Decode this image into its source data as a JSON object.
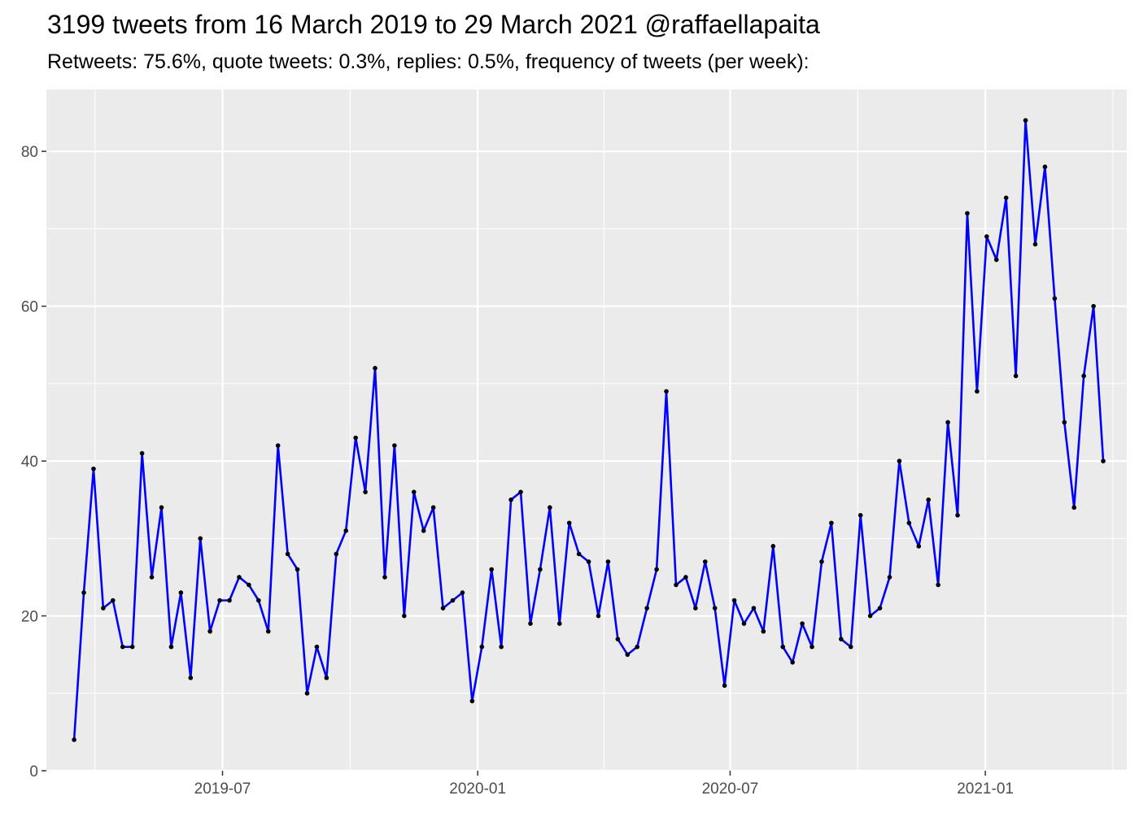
{
  "title": "3199 tweets from 16 March 2019 to 29 March 2021 @raffaellapaita",
  "subtitle": "Retweets: 75.6%, quote tweets: 0.3%, replies: 0.5%, frequency of tweets (per week):",
  "chart_data": {
    "type": "line",
    "title": "3199 tweets from 16 March 2019 to 29 March 2021 @raffaellapaita",
    "subtitle": "Retweets: 75.6%, quote tweets: 0.3%, replies: 0.5%, frequency of tweets (per week):",
    "xlabel": "",
    "ylabel": "",
    "x_axis": "date",
    "xlim": [
      "2019-02-24",
      "2021-04-13"
    ],
    "ylim": [
      0,
      88
    ],
    "y_ticks": [
      0,
      20,
      40,
      60,
      80
    ],
    "x_ticks": [
      {
        "value": "2019-07-01",
        "label": "2019-07"
      },
      {
        "value": "2020-01-01",
        "label": "2020-01"
      },
      {
        "value": "2020-07-01",
        "label": "2020-07"
      },
      {
        "value": "2021-01-01",
        "label": "2021-01"
      }
    ],
    "grid": true,
    "background": "#ebebeb",
    "line_color": "#0000ff",
    "point_color": "#000000",
    "series": [
      {
        "x": [
          "2019-03-16",
          "2019-03-23",
          "2019-03-30",
          "2019-04-06",
          "2019-04-13",
          "2019-04-20",
          "2019-04-27",
          "2019-05-04",
          "2019-05-11",
          "2019-05-18",
          "2019-05-25",
          "2019-06-01",
          "2019-06-08",
          "2019-06-15",
          "2019-06-22",
          "2019-06-29",
          "2019-07-06",
          "2019-07-13",
          "2019-07-20",
          "2019-07-27",
          "2019-08-03",
          "2019-08-10",
          "2019-08-17",
          "2019-08-24",
          "2019-08-31",
          "2019-09-07",
          "2019-09-14",
          "2019-09-21",
          "2019-09-28",
          "2019-10-05",
          "2019-10-12",
          "2019-10-19",
          "2019-10-26",
          "2019-11-02",
          "2019-11-09",
          "2019-11-16",
          "2019-11-23",
          "2019-11-30",
          "2019-12-07",
          "2019-12-14",
          "2019-12-21",
          "2019-12-28",
          "2020-01-04",
          "2020-01-11",
          "2020-01-18",
          "2020-01-25",
          "2020-02-01",
          "2020-02-08",
          "2020-02-15",
          "2020-02-22",
          "2020-02-29",
          "2020-03-07",
          "2020-03-14",
          "2020-03-21",
          "2020-03-28",
          "2020-04-04",
          "2020-04-11",
          "2020-04-18",
          "2020-04-25",
          "2020-05-02",
          "2020-05-09",
          "2020-05-16",
          "2020-05-23",
          "2020-05-30",
          "2020-06-06",
          "2020-06-13",
          "2020-06-20",
          "2020-06-27",
          "2020-07-04",
          "2020-07-11",
          "2020-07-18",
          "2020-07-25",
          "2020-08-01",
          "2020-08-08",
          "2020-08-15",
          "2020-08-22",
          "2020-08-29",
          "2020-09-05",
          "2020-09-12",
          "2020-09-19",
          "2020-09-26",
          "2020-10-03",
          "2020-10-10",
          "2020-10-17",
          "2020-10-24",
          "2020-10-31",
          "2020-11-07",
          "2020-11-14",
          "2020-11-21",
          "2020-11-28",
          "2020-12-05",
          "2020-12-12",
          "2020-12-19",
          "2020-12-26",
          "2021-01-02",
          "2021-01-09",
          "2021-01-16",
          "2021-01-23",
          "2021-01-30",
          "2021-02-06",
          "2021-02-13",
          "2021-02-20",
          "2021-02-27",
          "2021-03-06",
          "2021-03-13",
          "2021-03-20",
          "2021-03-27"
        ],
        "y": [
          4,
          23,
          39,
          21,
          22,
          16,
          16,
          41,
          25,
          34,
          16,
          23,
          12,
          30,
          18,
          22,
          22,
          25,
          24,
          22,
          18,
          42,
          28,
          26,
          10,
          16,
          12,
          28,
          31,
          43,
          36,
          52,
          25,
          42,
          20,
          36,
          31,
          34,
          21,
          22,
          23,
          9,
          16,
          26,
          16,
          35,
          36,
          19,
          26,
          34,
          19,
          32,
          28,
          27,
          20,
          27,
          17,
          15,
          16,
          21,
          26,
          49,
          24,
          25,
          21,
          27,
          21,
          11,
          22,
          19,
          21,
          18,
          29,
          16,
          14,
          19,
          16,
          27,
          32,
          17,
          16,
          33,
          20,
          21,
          25,
          40,
          32,
          29,
          35,
          24,
          45,
          33,
          72,
          49,
          69,
          66,
          74,
          51,
          84,
          68,
          78,
          61,
          45,
          34,
          51,
          60,
          40
        ]
      }
    ]
  }
}
